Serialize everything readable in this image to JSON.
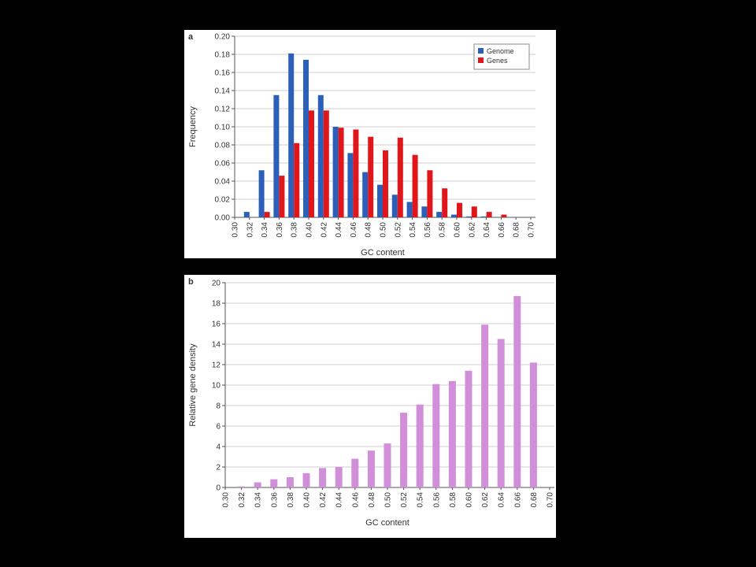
{
  "chart_data": [
    {
      "panel_label": "a",
      "type": "bar",
      "xlabel": "GC content",
      "ylabel": "Frequency",
      "ylim": [
        0,
        0.2
      ],
      "yticks": [
        "0.00",
        "0.02",
        "0.04",
        "0.06",
        "0.08",
        "0.10",
        "0.12",
        "0.14",
        "0.16",
        "0.18",
        "0.20"
      ],
      "categories": [
        "0.30",
        "0.32",
        "0.34",
        "0.36",
        "0.38",
        "0.40",
        "0.42",
        "0.44",
        "0.46",
        "0.48",
        "0.50",
        "0.52",
        "0.54",
        "0.56",
        "0.58",
        "0.60",
        "0.62",
        "0.64",
        "0.66",
        "0.68",
        "0.70"
      ],
      "legend_position": "top-right",
      "grid": "horizontal",
      "series": [
        {
          "name": "Genome",
          "color": "#2c5fb8",
          "values": [
            0,
            0.006,
            0.052,
            0.135,
            0.181,
            0.174,
            0.135,
            0.1,
            0.071,
            0.05,
            0.036,
            0.025,
            0.017,
            0.012,
            0.006,
            0.003,
            0.001,
            0.001,
            0,
            0,
            0
          ]
        },
        {
          "name": "Genes",
          "color": "#e0161b",
          "values": [
            0,
            0,
            0.006,
            0.046,
            0.082,
            0.118,
            0.118,
            0.099,
            0.097,
            0.089,
            0.074,
            0.088,
            0.069,
            0.052,
            0.032,
            0.016,
            0.012,
            0.006,
            0.003,
            0,
            0
          ]
        }
      ]
    },
    {
      "panel_label": "b",
      "type": "bar",
      "xlabel": "GC content",
      "ylabel": "Relative gene density",
      "ylim": [
        0,
        20
      ],
      "yticks": [
        "0",
        "2",
        "4",
        "6",
        "8",
        "10",
        "12",
        "14",
        "16",
        "18",
        "20"
      ],
      "categories": [
        "0.30",
        "0.32",
        "0.34",
        "0.36",
        "0.38",
        "0.40",
        "0.42",
        "0.44",
        "0.46",
        "0.48",
        "0.50",
        "0.52",
        "0.54",
        "0.56",
        "0.58",
        "0.60",
        "0.62",
        "0.64",
        "0.66",
        "0.68",
        "0.70"
      ],
      "grid": "horizontal",
      "series": [
        {
          "color": "#d08fd8",
          "values": [
            0,
            0.1,
            0.5,
            0.8,
            1.0,
            1.4,
            1.9,
            2.0,
            2.8,
            3.6,
            4.3,
            7.3,
            8.1,
            10.1,
            10.4,
            11.4,
            15.9,
            14.5,
            18.7,
            12.2,
            0
          ]
        }
      ]
    }
  ]
}
